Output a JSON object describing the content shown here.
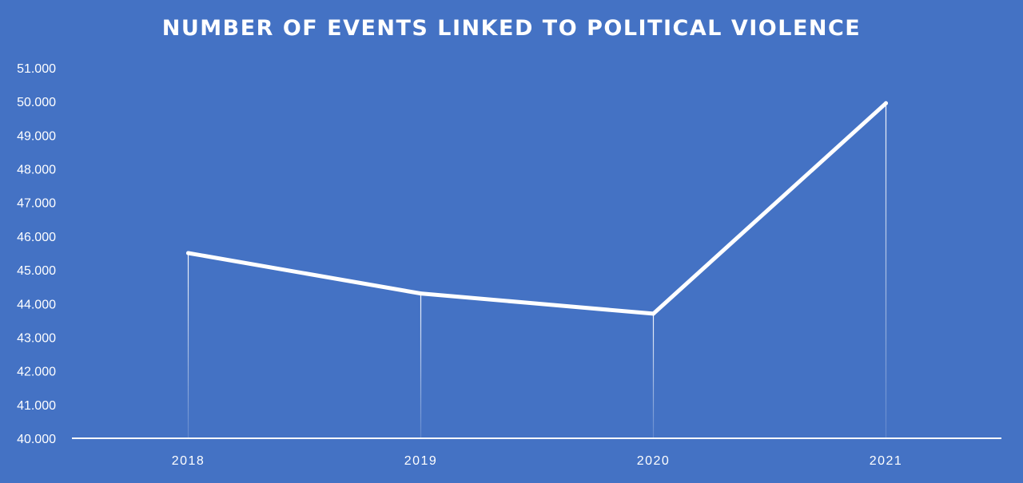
{
  "colors": {
    "background": "#4472c4",
    "line": "#ffffff",
    "text": "#ffffff"
  },
  "chart_data": {
    "type": "line",
    "title": "NUMBER OF EVENTS LINKED TO POLITICAL VIOLENCE",
    "xlabel": "",
    "ylabel": "",
    "categories": [
      "2018",
      "2019",
      "2020",
      "2021"
    ],
    "series": [
      {
        "values": [
          45500,
          44300,
          43700,
          49950
        ]
      }
    ],
    "ylim": [
      40000,
      51000
    ],
    "yticks": [
      40000,
      41000,
      42000,
      43000,
      44000,
      45000,
      46000,
      47000,
      48000,
      49000,
      50000,
      51000
    ],
    "ytick_labels": [
      "40.000",
      "41.000",
      "42.000",
      "43.000",
      "44.000",
      "45.000",
      "46.000",
      "47.000",
      "48.000",
      "49.000",
      "50.000",
      "51.000"
    ],
    "grid": false,
    "drop_lines": true,
    "legend": "none"
  }
}
